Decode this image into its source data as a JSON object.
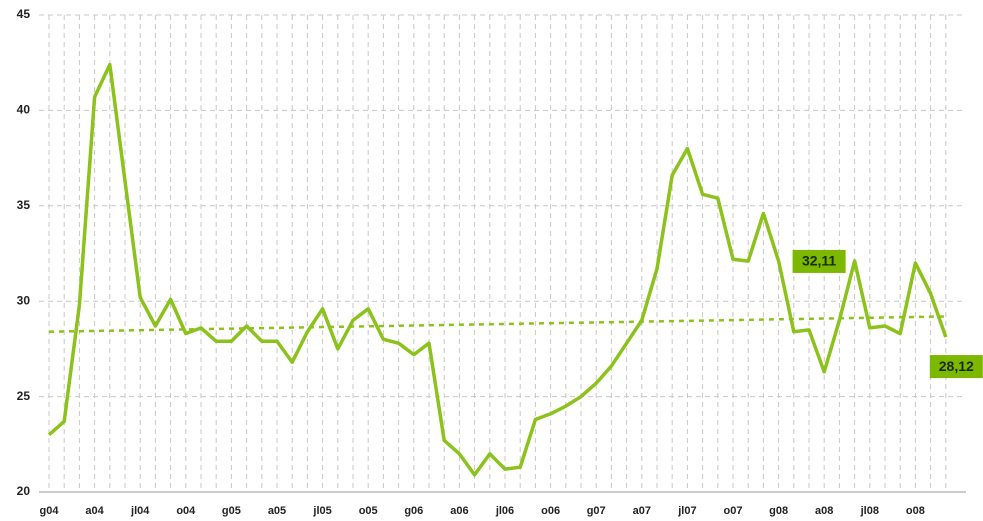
{
  "chart_data": {
    "type": "line",
    "categories": [
      "g04",
      null,
      null,
      "a04",
      null,
      null,
      "jl04",
      null,
      null,
      "o04",
      null,
      null,
      "g05",
      null,
      null,
      "a05",
      null,
      null,
      "jl05",
      null,
      null,
      "o05",
      null,
      null,
      "g06",
      null,
      null,
      "a06",
      null,
      null,
      "jl06",
      null,
      null,
      "o06",
      null,
      null,
      "g07",
      null,
      null,
      "a07",
      null,
      null,
      "jl07",
      null,
      null,
      "o07",
      null,
      null,
      "g08",
      null,
      null,
      "a08",
      null,
      null,
      "jl08",
      null,
      null,
      "o08",
      null,
      null
    ],
    "values": [
      23.0,
      23.7,
      29.8,
      40.7,
      42.4,
      36.3,
      30.2,
      28.7,
      30.1,
      28.3,
      28.6,
      27.9,
      27.9,
      28.7,
      27.9,
      27.9,
      26.8,
      28.4,
      29.6,
      27.5,
      29.0,
      29.6,
      28.0,
      27.8,
      27.2,
      27.8,
      22.7,
      22.0,
      20.9,
      22.0,
      21.2,
      21.3,
      23.8,
      24.1,
      24.5,
      25.0,
      25.7,
      26.6,
      27.8,
      29.0,
      31.7,
      36.6,
      38.0,
      35.6,
      35.4,
      32.2,
      32.1,
      34.6,
      32.1,
      28.4,
      28.5,
      26.3,
      29.0,
      32.11,
      28.6,
      28.7,
      28.3,
      32.0,
      30.4,
      28.12
    ],
    "value_labels": [
      null,
      null,
      null,
      null,
      null,
      null,
      null,
      null,
      null,
      null,
      null,
      null,
      null,
      null,
      null,
      null,
      null,
      null,
      null,
      null,
      null,
      null,
      null,
      null,
      null,
      null,
      null,
      null,
      null,
      null,
      null,
      null,
      null,
      null,
      null,
      null,
      null,
      null,
      null,
      null,
      null,
      null,
      null,
      null,
      null,
      null,
      null,
      null,
      null,
      null,
      null,
      null,
      null,
      "32,11",
      null,
      null,
      null,
      null,
      null,
      "28,12"
    ],
    "color": "#8cc21c",
    "trend": [
      28.4,
      29.2
    ],
    "ylim": [
      20,
      45
    ],
    "yticks": [
      20,
      25,
      30,
      35,
      40,
      45
    ],
    "grid": true
  }
}
